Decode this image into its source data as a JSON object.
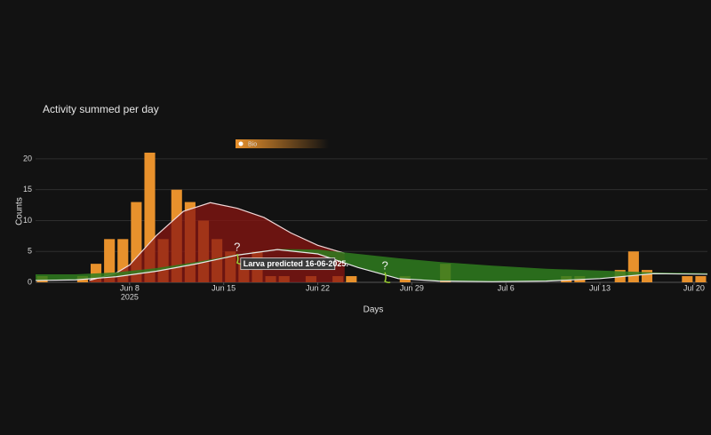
{
  "chart_data": {
    "type": "bar",
    "title": "Activity summed per day",
    "x_label": "Days",
    "y_label": "Counts",
    "name": "Bio",
    "color": "#e8912c",
    "x": [
      "2025-06-01",
      "2025-06-04",
      "2025-06-05",
      "2025-06-06",
      "2025-06-07",
      "2025-06-08",
      "2025-06-09",
      "2025-06-10",
      "2025-06-11",
      "2025-06-12",
      "2025-06-13",
      "2025-06-14",
      "2025-06-15",
      "2025-06-16",
      "2025-06-17",
      "2025-06-18",
      "2025-06-19",
      "2025-06-21",
      "2025-06-23",
      "2025-06-24",
      "2025-06-28",
      "2025-07-01",
      "2025-07-10",
      "2025-07-11",
      "2025-07-14",
      "2025-07-15",
      "2025-07-16",
      "2025-07-19",
      "2025-07-20"
    ],
    "values": [
      1,
      1,
      3,
      7,
      7,
      13,
      21,
      7,
      15,
      13,
      10,
      7,
      5,
      3,
      5,
      1,
      1,
      1,
      1,
      1,
      1,
      3,
      1,
      1,
      2,
      5,
      2,
      1,
      1
    ],
    "xlim": [
      "2025-06-01",
      "2025-07-21"
    ],
    "xticks": [
      {
        "value": "2025-06-08",
        "label": "Jun 8"
      },
      {
        "value": "2025-06-15",
        "label": "Jun 15"
      },
      {
        "value": "2025-06-22",
        "label": "Jun 22"
      },
      {
        "value": "2025-06-29",
        "label": "Jun 29"
      },
      {
        "value": "2025-07-06",
        "label": "Jul 6"
      },
      {
        "value": "2025-07-13",
        "label": "Jul 13"
      },
      {
        "value": "2025-07-20",
        "label": "Jul 20"
      }
    ],
    "x_year_label": "2025",
    "ylim": [
      0,
      22
    ],
    "yticks": [
      0,
      5,
      10,
      15,
      20
    ],
    "grid": true,
    "overlays": [
      {
        "type": "area",
        "color": "#8a1512",
        "x": [
          "2025-06-05",
          "2025-06-07",
          "2025-06-08",
          "2025-06-10",
          "2025-06-12",
          "2025-06-14",
          "2025-06-16",
          "2025-06-18",
          "2025-06-20",
          "2025-06-22",
          "2025-06-24"
        ],
        "values": [
          0.3,
          1.5,
          2.8,
          7.6,
          11.5,
          12.9,
          12,
          10.5,
          8,
          6,
          4.7
        ]
      },
      {
        "type": "band",
        "color": "#2f7d1f",
        "x": [
          "2025-06-01",
          "2025-06-04",
          "2025-06-07",
          "2025-06-10",
          "2025-06-13",
          "2025-06-16",
          "2025-06-19",
          "2025-06-22",
          "2025-06-25",
          "2025-06-28",
          "2025-07-01",
          "2025-07-05",
          "2025-07-09",
          "2025-07-13",
          "2025-07-17",
          "2025-07-21"
        ],
        "upper": [
          1.3,
          1.3,
          1.6,
          2.3,
          3.3,
          4.5,
          5.4,
          5.3,
          4.6,
          3.9,
          3.3,
          2.7,
          2.2,
          1.9,
          1.6,
          1.5
        ],
        "lower": [
          0.3,
          0.4,
          0.9,
          1.8,
          3,
          4.4,
          5.3,
          4.6,
          2.4,
          0.6,
          0.2,
          0.1,
          0.2,
          0.6,
          1.4,
          1.3
        ]
      }
    ],
    "annotations": [
      {
        "text": "?",
        "x": "2025-06-16",
        "y": 5.6
      },
      {
        "text": "?",
        "x": "2025-06-27",
        "y": 2.6
      }
    ],
    "hover_label": {
      "text": "Larva predicted 16-06-2025.",
      "x": "2025-06-16",
      "y": 3
    }
  }
}
